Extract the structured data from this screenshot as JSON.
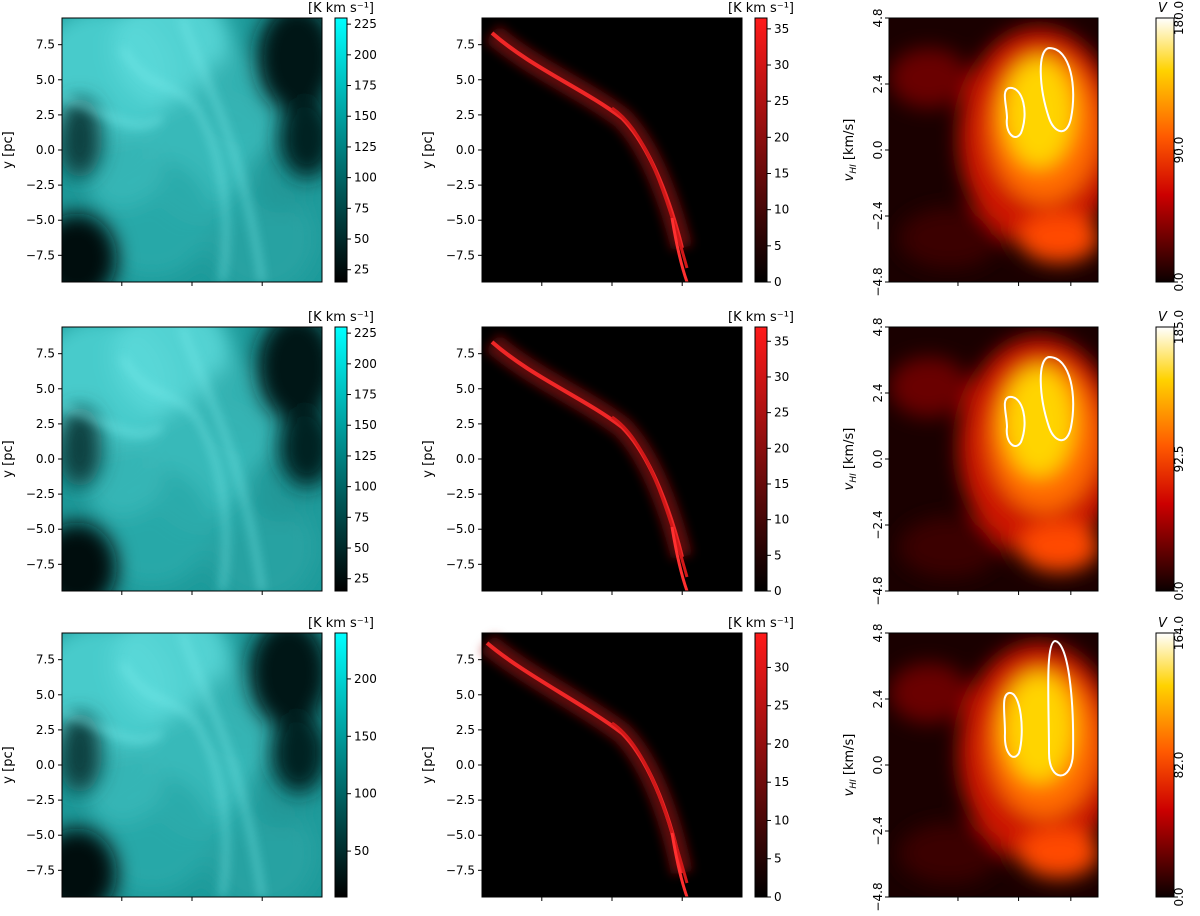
{
  "chart_data": [
    {
      "type": "heatmap",
      "panel": "intensity",
      "row": 1,
      "ylabel": "y [pc]",
      "yticks": [
        "7.5",
        "5.0",
        "2.5",
        "0.0",
        "−2.5",
        "−5.0",
        "−7.5"
      ],
      "ytick_values": [
        7.5,
        5.0,
        2.5,
        0.0,
        -2.5,
        -5.0,
        -7.5
      ],
      "ylim": [
        -9.4,
        9.4
      ],
      "colorbar": {
        "label": "[K km s⁻¹]",
        "ticks": [
          "225",
          "200",
          "175",
          "150",
          "125",
          "100",
          "75",
          "50",
          "25"
        ],
        "tick_values": [
          225,
          200,
          175,
          150,
          125,
          100,
          75,
          50,
          25
        ],
        "range": [
          15,
          230
        ],
        "cmap": [
          "#000000",
          "#00ffff"
        ]
      }
    },
    {
      "type": "heatmap",
      "panel": "selected-intensity",
      "row": 1,
      "ylabel": "y [pc]",
      "yticks": [
        "7.5",
        "5.0",
        "2.5",
        "0.0",
        "−2.5",
        "−5.0",
        "−7.5"
      ],
      "ytick_values": [
        7.5,
        5.0,
        2.5,
        0.0,
        -2.5,
        -5.0,
        -7.5
      ],
      "ylim": [
        -9.4,
        9.4
      ],
      "colorbar": {
        "label": "[K km s⁻¹]",
        "ticks": [
          "35",
          "30",
          "25",
          "20",
          "15",
          "10",
          "5",
          "0"
        ],
        "tick_values": [
          35,
          30,
          25,
          20,
          15,
          10,
          5,
          0
        ],
        "range": [
          0,
          36.5
        ],
        "cmap": [
          "#000000",
          "#ff1a1a"
        ]
      }
    },
    {
      "type": "heatmap",
      "panel": "hro-map",
      "row": 1,
      "ylabel": "v_HI [km/s]",
      "yticks": [
        "4.8",
        "2.4",
        "0.0",
        "−2.4",
        "−4.8"
      ],
      "ytick_values": [
        4.8,
        2.4,
        0.0,
        -2.4,
        -4.8
      ],
      "ylim": [
        -4.8,
        4.8
      ],
      "colorbar": {
        "label": "V",
        "ticks": [
          "180.0",
          "90.0",
          "0.0"
        ],
        "tick_values": [
          180,
          90,
          0
        ],
        "range": [
          0,
          180
        ],
        "cmap": "hot"
      }
    },
    {
      "type": "heatmap",
      "panel": "intensity",
      "row": 2,
      "ylabel": "y [pc]",
      "yticks": [
        "7.5",
        "5.0",
        "2.5",
        "0.0",
        "−2.5",
        "−5.0",
        "−7.5"
      ],
      "ytick_values": [
        7.5,
        5.0,
        2.5,
        0.0,
        -2.5,
        -5.0,
        -7.5
      ],
      "ylim": [
        -9.4,
        9.4
      ],
      "colorbar": {
        "label": "[K km s⁻¹]",
        "ticks": [
          "225",
          "200",
          "175",
          "150",
          "125",
          "100",
          "75",
          "50",
          "25"
        ],
        "tick_values": [
          225,
          200,
          175,
          150,
          125,
          100,
          75,
          50,
          25
        ],
        "range": [
          15,
          230
        ],
        "cmap": [
          "#000000",
          "#00ffff"
        ]
      }
    },
    {
      "type": "heatmap",
      "panel": "selected-intensity",
      "row": 2,
      "ylabel": "y [pc]",
      "yticks": [
        "7.5",
        "5.0",
        "2.5",
        "0.0",
        "−2.5",
        "−5.0",
        "−7.5"
      ],
      "ytick_values": [
        7.5,
        5.0,
        2.5,
        0.0,
        -2.5,
        -5.0,
        -7.5
      ],
      "ylim": [
        -9.4,
        9.4
      ],
      "colorbar": {
        "label": "[K km s⁻¹]",
        "ticks": [
          "35",
          "30",
          "25",
          "20",
          "15",
          "10",
          "5",
          "0"
        ],
        "tick_values": [
          35,
          30,
          25,
          20,
          15,
          10,
          5,
          0
        ],
        "range": [
          0,
          37
        ],
        "cmap": [
          "#000000",
          "#ff1a1a"
        ]
      }
    },
    {
      "type": "heatmap",
      "panel": "hro-map",
      "row": 2,
      "ylabel": "v_HI [km/s]",
      "yticks": [
        "4.8",
        "2.4",
        "0.0",
        "−2.4",
        "−4.8"
      ],
      "ytick_values": [
        4.8,
        2.4,
        0.0,
        -2.4,
        -4.8
      ],
      "ylim": [
        -4.8,
        4.8
      ],
      "colorbar": {
        "label": "V",
        "ticks": [
          "185.0",
          "92.5",
          "0.0"
        ],
        "tick_values": [
          185,
          92.5,
          0
        ],
        "range": [
          0,
          185
        ],
        "cmap": "hot"
      }
    },
    {
      "type": "heatmap",
      "panel": "intensity",
      "row": 3,
      "ylabel": "y [pc]",
      "yticks": [
        "7.5",
        "5.0",
        "2.5",
        "0.0",
        "−2.5",
        "−5.0",
        "−7.5"
      ],
      "ytick_values": [
        7.5,
        5.0,
        2.5,
        0.0,
        -2.5,
        -5.0,
        -7.5
      ],
      "ylim": [
        -9.4,
        9.4
      ],
      "colorbar": {
        "label": "[K km s⁻¹]",
        "ticks": [
          "200",
          "150",
          "100",
          "50"
        ],
        "tick_values": [
          200,
          150,
          100,
          50
        ],
        "range": [
          10,
          240
        ],
        "cmap": [
          "#000000",
          "#00ffff"
        ]
      }
    },
    {
      "type": "heatmap",
      "panel": "selected-intensity",
      "row": 3,
      "ylabel": "y [pc]",
      "yticks": [
        "7.5",
        "5.0",
        "2.5",
        "0.0",
        "−2.5",
        "−5.0",
        "−7.5"
      ],
      "ytick_values": [
        7.5,
        5.0,
        2.5,
        0.0,
        -2.5,
        -5.0,
        -7.5
      ],
      "ylim": [
        -9.4,
        9.4
      ],
      "colorbar": {
        "label": "[K km s⁻¹]",
        "ticks": [
          "30",
          "25",
          "20",
          "15",
          "10",
          "5",
          "0"
        ],
        "tick_values": [
          30,
          25,
          20,
          15,
          10,
          5,
          0
        ],
        "range": [
          0,
          34.5
        ],
        "cmap": [
          "#000000",
          "#ff1a1a"
        ]
      }
    },
    {
      "type": "heatmap",
      "panel": "hro-map",
      "row": 3,
      "ylabel": "v_HI [km/s]",
      "yticks": [
        "4.8",
        "2.4",
        "0.0",
        "−2.4",
        "−4.8"
      ],
      "ytick_values": [
        4.8,
        2.4,
        0.0,
        -2.4,
        -4.8
      ],
      "ylim": [
        -4.8,
        4.8
      ],
      "colorbar": {
        "label": "V",
        "ticks": [
          "164.0",
          "82.0",
          "0.0"
        ],
        "tick_values": [
          164,
          82,
          0
        ],
        "range": [
          0,
          164
        ],
        "cmap": "hot"
      }
    }
  ]
}
